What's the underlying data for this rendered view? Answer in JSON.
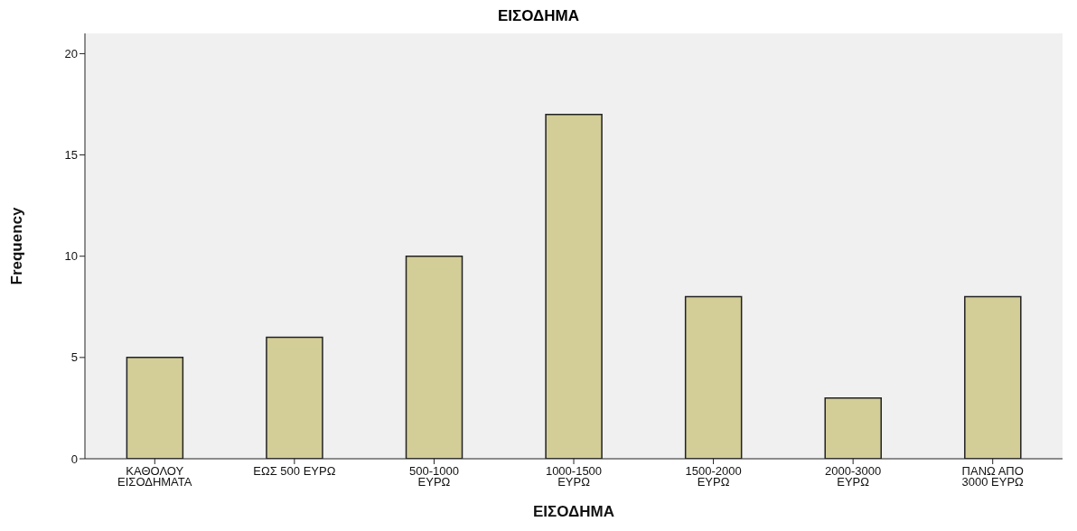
{
  "chart_data": {
    "type": "bar",
    "title": "ΕΙΣΟΔΗΜΑ",
    "xlabel": "ΕΙΣΟΔΗΜΑ",
    "ylabel": "Frequency",
    "categories": [
      "ΚΑΘΟΛΟΥ\nΕΙΣΟΔΗΜΑΤΑ",
      "ΕΩΣ 500 ΕΥΡΩ",
      "500-1000\nΕΥΡΩ",
      "1000-1500\nΕΥΡΩ",
      "1500-2000\nΕΥΡΩ",
      "2000-3000\nΕΥΡΩ",
      "ΠΑΝΩ ΑΠΟ\n3000 ΕΥΡΩ"
    ],
    "values": [
      5,
      6,
      10,
      17,
      8,
      3,
      8
    ],
    "color": "#d3ce98",
    "ylim": [
      0,
      21
    ],
    "yticks": [
      0,
      5,
      10,
      15,
      20
    ],
    "grid": false
  }
}
